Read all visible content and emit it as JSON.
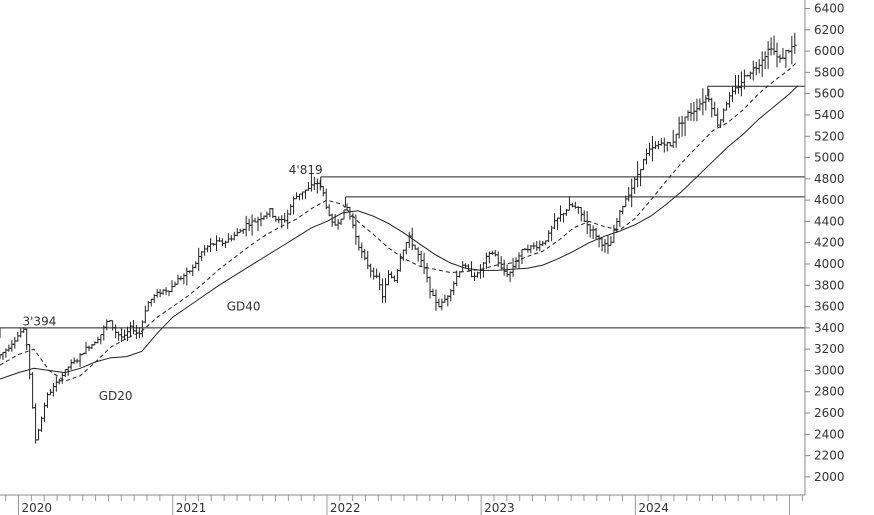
{
  "chart_data": {
    "type": "line",
    "title": "",
    "xlabel": "",
    "ylabel": "",
    "x_ticks": [
      "2020",
      "2021",
      "2022",
      "2023",
      "2024"
    ],
    "y_ticks": [
      2000,
      2200,
      2400,
      2600,
      2800,
      3000,
      3200,
      3400,
      3600,
      3800,
      4000,
      4200,
      4400,
      4600,
      4800,
      5000,
      5200,
      5400,
      5600,
      5800,
      6000,
      6200,
      6400
    ],
    "xlim": [
      2019.88,
      2025.1
    ],
    "ylim": [
      1830,
      6480
    ],
    "grid": false,
    "annotations": [
      {
        "text": "3'394",
        "x": 2020.0,
        "y": 3394
      },
      {
        "text": "4'819",
        "x": 2021.96,
        "y": 4819
      },
      {
        "text": "GD40",
        "x": 2021.35,
        "y": 3600
      },
      {
        "text": "GD20",
        "x": 2020.52,
        "y": 2760
      }
    ],
    "horizontal_levels": [
      {
        "y": 3400,
        "from": 2019.88
      },
      {
        "y": 4819,
        "from": 2021.96
      },
      {
        "y": 4630,
        "from": 2022.12
      },
      {
        "y": 5670,
        "from": 2024.47
      }
    ],
    "price_path": [
      [
        2019.88,
        3120
      ],
      [
        2019.95,
        3210
      ],
      [
        2020.0,
        3300
      ],
      [
        2020.05,
        3390
      ],
      [
        2020.08,
        3200
      ],
      [
        2020.1,
        2800
      ],
      [
        2020.13,
        2350
      ],
      [
        2020.16,
        2500
      ],
      [
        2020.2,
        2750
      ],
      [
        2020.25,
        2850
      ],
      [
        2020.3,
        2950
      ],
      [
        2020.35,
        3050
      ],
      [
        2020.4,
        3100
      ],
      [
        2020.45,
        3200
      ],
      [
        2020.5,
        3250
      ],
      [
        2020.55,
        3330
      ],
      [
        2020.6,
        3480
      ],
      [
        2020.65,
        3360
      ],
      [
        2020.7,
        3300
      ],
      [
        2020.75,
        3410
      ],
      [
        2020.8,
        3330
      ],
      [
        2020.85,
        3620
      ],
      [
        2020.9,
        3700
      ],
      [
        2020.95,
        3750
      ],
      [
        2021.0,
        3760
      ],
      [
        2021.05,
        3850
      ],
      [
        2021.1,
        3900
      ],
      [
        2021.15,
        3960
      ],
      [
        2021.2,
        4100
      ],
      [
        2021.25,
        4170
      ],
      [
        2021.3,
        4200
      ],
      [
        2021.35,
        4200
      ],
      [
        2021.4,
        4250
      ],
      [
        2021.45,
        4300
      ],
      [
        2021.5,
        4380
      ],
      [
        2021.55,
        4400
      ],
      [
        2021.6,
        4450
      ],
      [
        2021.65,
        4500
      ],
      [
        2021.7,
        4400
      ],
      [
        2021.75,
        4420
      ],
      [
        2021.8,
        4600
      ],
      [
        2021.85,
        4680
      ],
      [
        2021.9,
        4700
      ],
      [
        2021.95,
        4780
      ],
      [
        2022.0,
        4650
      ],
      [
        2022.03,
        4450
      ],
      [
        2022.06,
        4350
      ],
      [
        2022.1,
        4420
      ],
      [
        2022.15,
        4530
      ],
      [
        2022.18,
        4400
      ],
      [
        2022.22,
        4200
      ],
      [
        2022.26,
        4050
      ],
      [
        2022.3,
        3950
      ],
      [
        2022.35,
        3850
      ],
      [
        2022.38,
        3700
      ],
      [
        2022.42,
        3900
      ],
      [
        2022.46,
        3850
      ],
      [
        2022.5,
        4100
      ],
      [
        2022.55,
        4250
      ],
      [
        2022.6,
        4120
      ],
      [
        2022.65,
        3950
      ],
      [
        2022.7,
        3700
      ],
      [
        2022.75,
        3600
      ],
      [
        2022.8,
        3700
      ],
      [
        2022.85,
        3850
      ],
      [
        2022.9,
        4000
      ],
      [
        2022.95,
        3900
      ],
      [
        2023.0,
        3900
      ],
      [
        2023.05,
        4050
      ],
      [
        2023.1,
        4120
      ],
      [
        2023.15,
        3950
      ],
      [
        2023.2,
        3900
      ],
      [
        2023.25,
        4050
      ],
      [
        2023.3,
        4150
      ],
      [
        2023.35,
        4160
      ],
      [
        2023.4,
        4180
      ],
      [
        2023.45,
        4250
      ],
      [
        2023.5,
        4400
      ],
      [
        2023.55,
        4480
      ],
      [
        2023.6,
        4550
      ],
      [
        2023.65,
        4510
      ],
      [
        2023.7,
        4380
      ],
      [
        2023.75,
        4300
      ],
      [
        2023.8,
        4200
      ],
      [
        2023.85,
        4150
      ],
      [
        2023.9,
        4400
      ],
      [
        2023.95,
        4600
      ],
      [
        2024.0,
        4730
      ],
      [
        2024.05,
        4900
      ],
      [
        2024.1,
        5050
      ],
      [
        2024.15,
        5100
      ],
      [
        2024.2,
        5150
      ],
      [
        2024.25,
        5100
      ],
      [
        2024.3,
        5300
      ],
      [
        2024.35,
        5400
      ],
      [
        2024.4,
        5450
      ],
      [
        2024.45,
        5530
      ],
      [
        2024.5,
        5570
      ],
      [
        2024.53,
        5400
      ],
      [
        2024.56,
        5300
      ],
      [
        2024.6,
        5500
      ],
      [
        2024.65,
        5600
      ],
      [
        2024.7,
        5700
      ],
      [
        2024.75,
        5800
      ],
      [
        2024.8,
        5850
      ],
      [
        2024.85,
        5950
      ],
      [
        2024.9,
        6050
      ],
      [
        2024.95,
        5900
      ],
      [
        2025.0,
        6000
      ],
      [
        2025.05,
        6050
      ]
    ],
    "series": [
      {
        "name": "GD20",
        "style": "dashed",
        "x": [
          2019.88,
          2020.0,
          2020.1,
          2020.2,
          2020.3,
          2020.4,
          2020.5,
          2020.6,
          2020.7,
          2020.8,
          2020.9,
          2021.0,
          2021.1,
          2021.2,
          2021.3,
          2021.4,
          2021.5,
          2021.6,
          2021.7,
          2021.8,
          2021.9,
          2022.0,
          2022.1,
          2022.2,
          2022.3,
          2022.4,
          2022.5,
          2022.6,
          2022.7,
          2022.8,
          2022.9,
          2023.0,
          2023.1,
          2023.2,
          2023.3,
          2023.4,
          2023.5,
          2023.6,
          2023.7,
          2023.8,
          2023.9,
          2024.0,
          2024.1,
          2024.2,
          2024.3,
          2024.4,
          2024.5,
          2024.6,
          2024.7,
          2024.8,
          2024.9,
          2025.0,
          2025.05
        ],
        "y": [
          3050,
          3150,
          3200,
          3000,
          2900,
          2950,
          3080,
          3220,
          3300,
          3370,
          3500,
          3600,
          3700,
          3820,
          3950,
          4060,
          4170,
          4270,
          4350,
          4420,
          4520,
          4600,
          4560,
          4400,
          4280,
          4150,
          4050,
          3980,
          3950,
          3920,
          3930,
          3950,
          3990,
          4010,
          4070,
          4120,
          4220,
          4340,
          4400,
          4350,
          4320,
          4430,
          4600,
          4780,
          4950,
          5100,
          5250,
          5330,
          5450,
          5600,
          5720,
          5830,
          5900
        ]
      },
      {
        "name": "GD40",
        "style": "solid",
        "x": [
          2019.88,
          2020.0,
          2020.1,
          2020.2,
          2020.3,
          2020.4,
          2020.5,
          2020.6,
          2020.7,
          2020.8,
          2020.9,
          2021.0,
          2021.1,
          2021.2,
          2021.3,
          2021.4,
          2021.5,
          2021.6,
          2021.7,
          2021.8,
          2021.9,
          2022.0,
          2022.1,
          2022.2,
          2022.3,
          2022.4,
          2022.5,
          2022.6,
          2022.7,
          2022.8,
          2022.9,
          2023.0,
          2023.1,
          2023.2,
          2023.3,
          2023.4,
          2023.5,
          2023.6,
          2023.7,
          2023.8,
          2023.9,
          2024.0,
          2024.1,
          2024.2,
          2024.3,
          2024.4,
          2024.5,
          2024.6,
          2024.7,
          2024.8,
          2024.9,
          2025.0,
          2025.05
        ],
        "y": [
          2920,
          2980,
          3020,
          3000,
          2980,
          3020,
          3080,
          3120,
          3130,
          3180,
          3350,
          3500,
          3600,
          3700,
          3800,
          3890,
          3980,
          4070,
          4160,
          4250,
          4340,
          4400,
          4480,
          4500,
          4450,
          4380,
          4290,
          4190,
          4090,
          4010,
          3960,
          3940,
          3940,
          3950,
          3960,
          3990,
          4050,
          4120,
          4200,
          4260,
          4310,
          4370,
          4450,
          4560,
          4680,
          4820,
          4960,
          5100,
          5220,
          5360,
          5480,
          5600,
          5670
        ]
      }
    ]
  }
}
